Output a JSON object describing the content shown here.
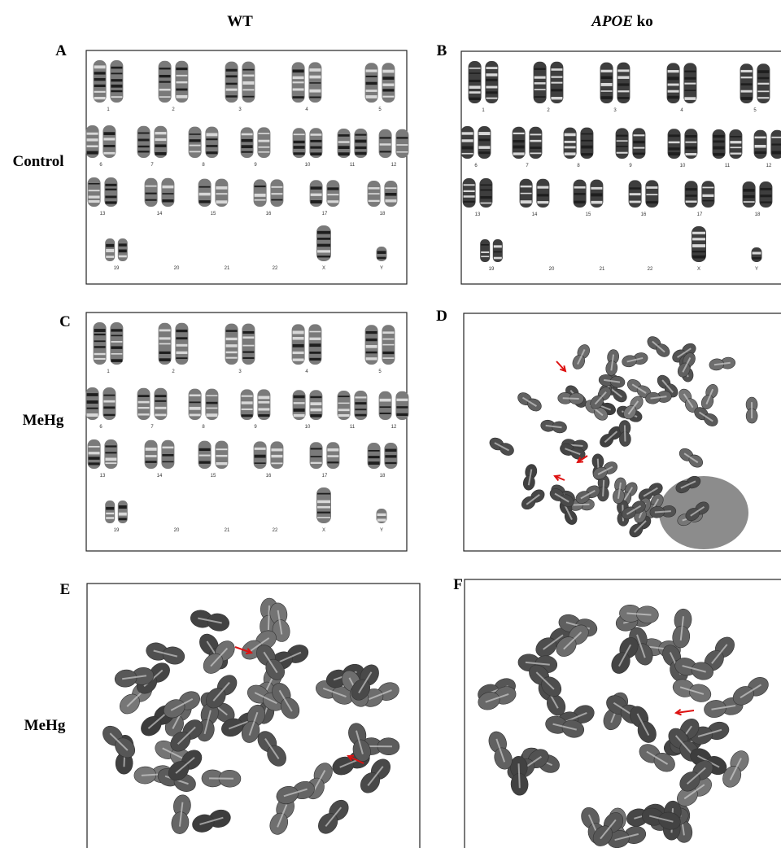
{
  "header": {
    "wt": "WT",
    "apoe_gene": "APOE",
    "apoe_suffix": "ko"
  },
  "row_labels": [
    "Control",
    "MeHg",
    "MeHg"
  ],
  "panels": [
    {
      "letter": "A",
      "chromosome_labels": [
        "1",
        "2",
        "3",
        "4",
        "5",
        "6",
        "7",
        "8",
        "9",
        "10",
        "11",
        "12",
        "13",
        "14",
        "15",
        "16",
        "17",
        "18",
        "19",
        "20",
        "21",
        "22",
        "X",
        "Y"
      ]
    },
    {
      "letter": "B",
      "chromosome_labels": [
        "1",
        "2",
        "3",
        "4",
        "5",
        "6",
        "7",
        "8",
        "9",
        "10",
        "11",
        "12",
        "13",
        "14",
        "15",
        "16",
        "17",
        "18",
        "19",
        "20",
        "21",
        "22",
        "X",
        "Y"
      ]
    },
    {
      "letter": "C",
      "chromosome_labels": [
        "1",
        "2",
        "3",
        "4",
        "5",
        "6",
        "7",
        "8",
        "9",
        "10",
        "11",
        "12",
        "13",
        "14",
        "15",
        "16",
        "17",
        "18",
        "19",
        "20",
        "21",
        "22",
        "X",
        "Y"
      ]
    },
    {
      "letter": "D"
    },
    {
      "letter": "E"
    },
    {
      "letter": "F"
    }
  ]
}
